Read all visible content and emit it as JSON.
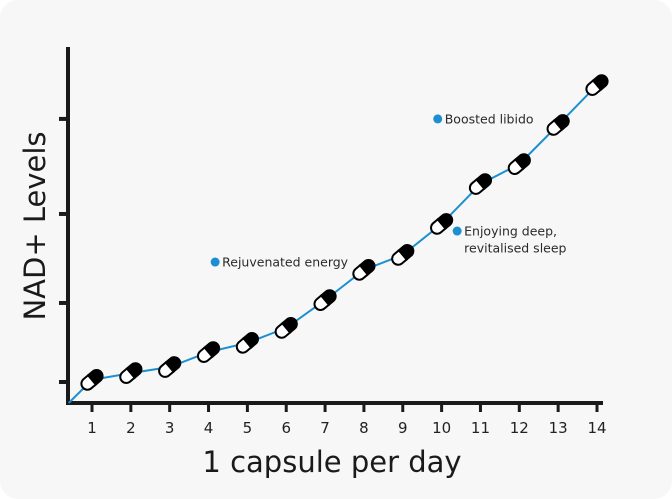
{
  "chart_data": {
    "type": "line",
    "title": "",
    "xlabel": "1 capsule per day",
    "ylabel": "NAD+ Levels",
    "x": [
      1,
      2,
      3,
      4,
      5,
      6,
      7,
      8,
      9,
      10,
      11,
      12,
      13,
      14
    ],
    "x_tick_labels": [
      "1",
      "2",
      "3",
      "4",
      "5",
      "6",
      "7",
      "8",
      "9",
      "10",
      "11",
      "12",
      "13",
      "14"
    ],
    "series": [
      {
        "values": [
          6.5,
          8.4,
          10.1,
          14.3,
          16.9,
          21.1,
          28.9,
          37.4,
          41.6,
          50.3,
          61.5,
          67.1,
          78.1,
          89.3
        ]
      }
    ],
    "line_start": {
      "x": 0.4,
      "y": 0
    },
    "y_ticks": [
      5.9,
      28.1,
      53.1,
      79.8
    ],
    "y_tick_labels_shown": false,
    "xlim": [
      0.4,
      14.1
    ],
    "ylim": [
      0,
      100
    ],
    "grid": false,
    "marker": "capsule",
    "colors": {
      "line": "#1b8fd0",
      "annotation_dot": "#1b8fd0",
      "axis": "#1a1a1a",
      "background": "#f7f7f7"
    },
    "annotations": [
      {
        "lines": [
          "Rejuvenated energy"
        ],
        "x": 4.17,
        "y": 39.6
      },
      {
        "lines": [
          "Boosted libido"
        ],
        "x": 9.9,
        "y": 79.8
      },
      {
        "lines": [
          "Enjoying deep,",
          "revitalised sleep"
        ],
        "x": 10.4,
        "y": 48.3
      }
    ]
  }
}
